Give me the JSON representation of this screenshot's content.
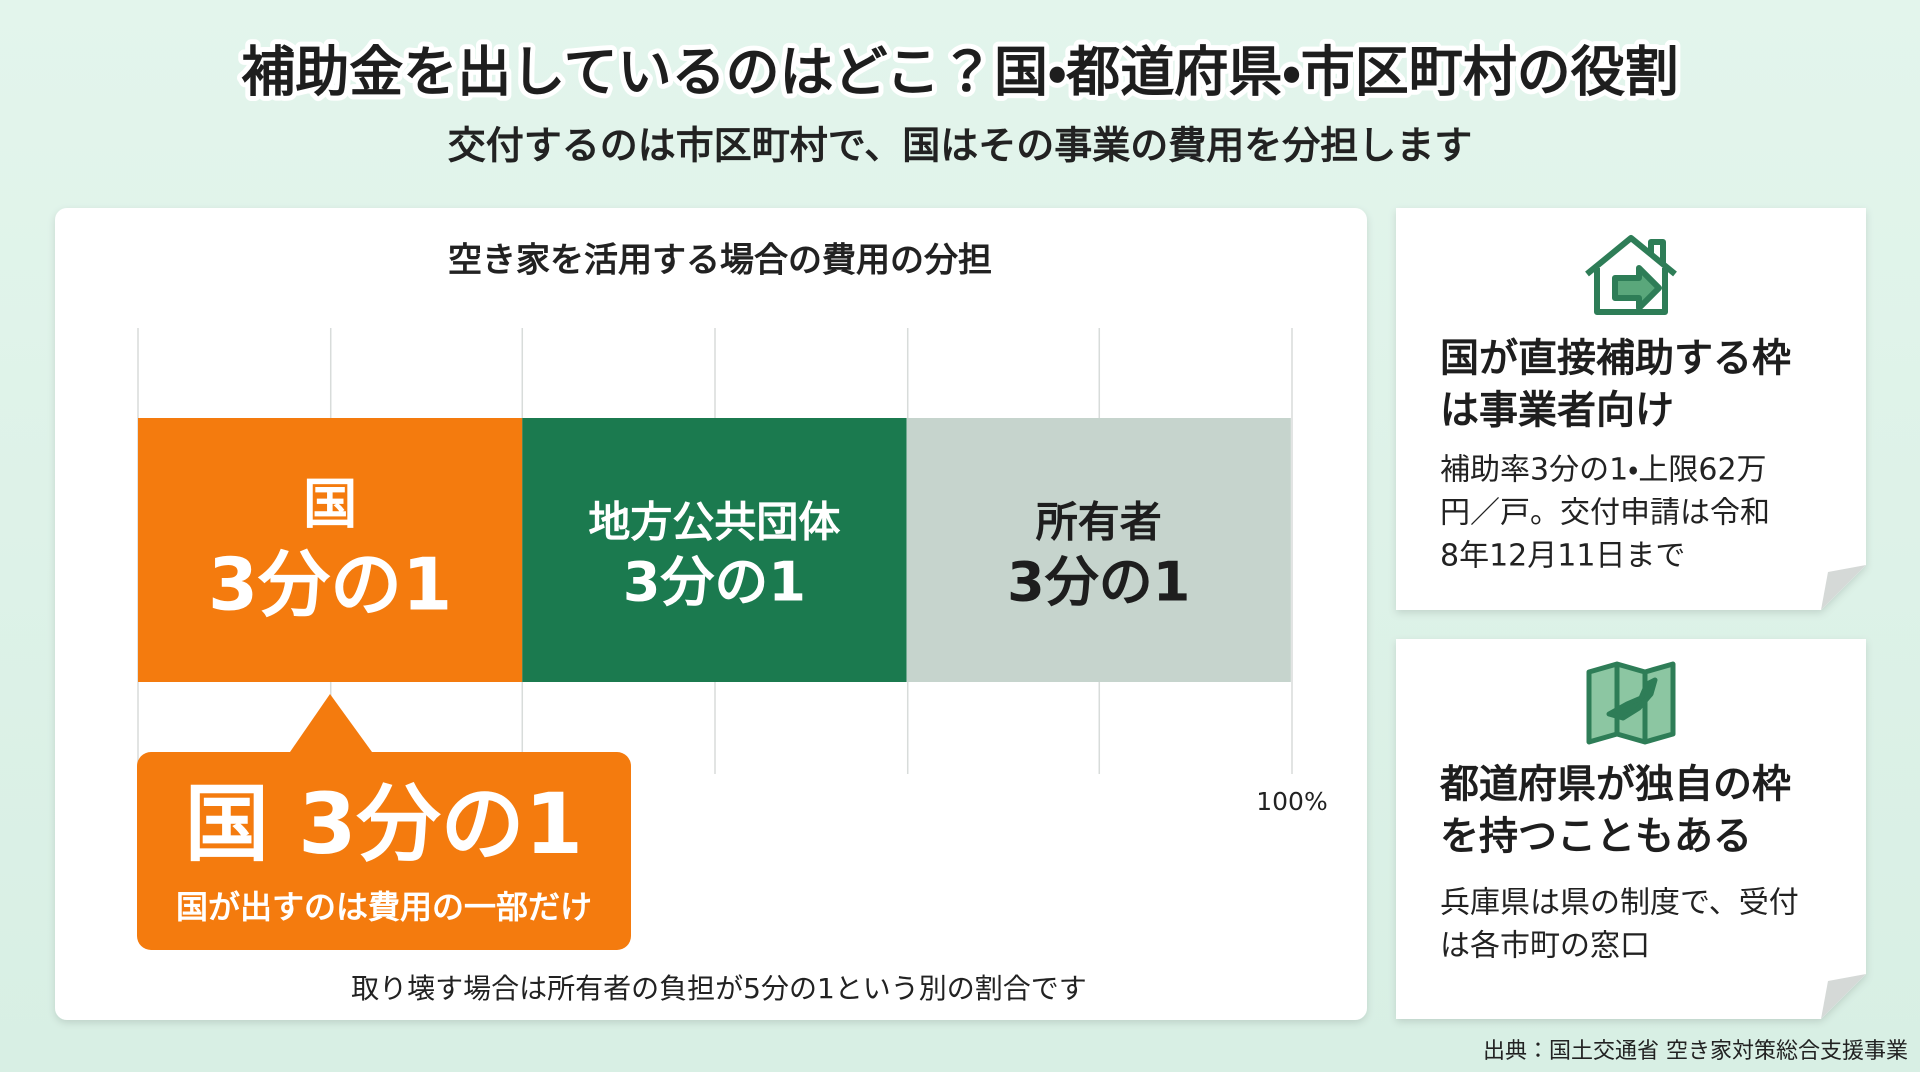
{
  "header": {
    "title": "補助金を出しているのはどこ？国・都道府県・市区町村の役割",
    "subtitle": "交付するのは市区町村で、国はその事業の費用を分担します"
  },
  "chart_data": {
    "type": "stacked-bar",
    "title": "空き家を活用する場合の費用の分担",
    "orientation": "horizontal",
    "series": [
      {
        "name": "国",
        "color": "#f47b0e",
        "values": [
          33.3
        ],
        "value_labels": [
          "3分の1"
        ]
      },
      {
        "name": "地方公共団体",
        "color": "#1b7a4f",
        "values": [
          33.3
        ],
        "value_labels": [
          "3分の1"
        ]
      },
      {
        "name": "所有者",
        "color": "#c6d4cd",
        "values": [
          33.3
        ],
        "value_labels": [
          "3分の1"
        ]
      }
    ],
    "xlim": [
      0,
      100
    ],
    "xticks": [
      {
        "value": 0,
        "label": null
      },
      {
        "value": 16.7,
        "label": null
      },
      {
        "value": 33.3,
        "label": null
      },
      {
        "value": 50,
        "label": null
      },
      {
        "value": 66.7,
        "label": null
      },
      {
        "value": 83.3,
        "label": null
      },
      {
        "value": 100,
        "label": "100%"
      }
    ],
    "grid": true
  },
  "callout": {
    "title": "国 3分の1",
    "note": "国が出すのは費用の一部だけ"
  },
  "footnote": "取り壊す場合は所有者の負担が5分の1という別の割合です",
  "cards": [
    {
      "heading": [
        "国が直接補助する枠",
        "は事業者向け"
      ],
      "body": [
        "補助率3分の1・上限62万",
        "円／戸。交付申請は令和",
        "8年12月11日まで"
      ]
    },
    {
      "heading": [
        "都道府県が独自の枠",
        "を持つこともある"
      ],
      "body": [
        "兵庫県は県の制度で、受付",
        "は各市町の窓口"
      ]
    }
  ],
  "source": "出典：国土交通省 空き家対策総合支援事業"
}
